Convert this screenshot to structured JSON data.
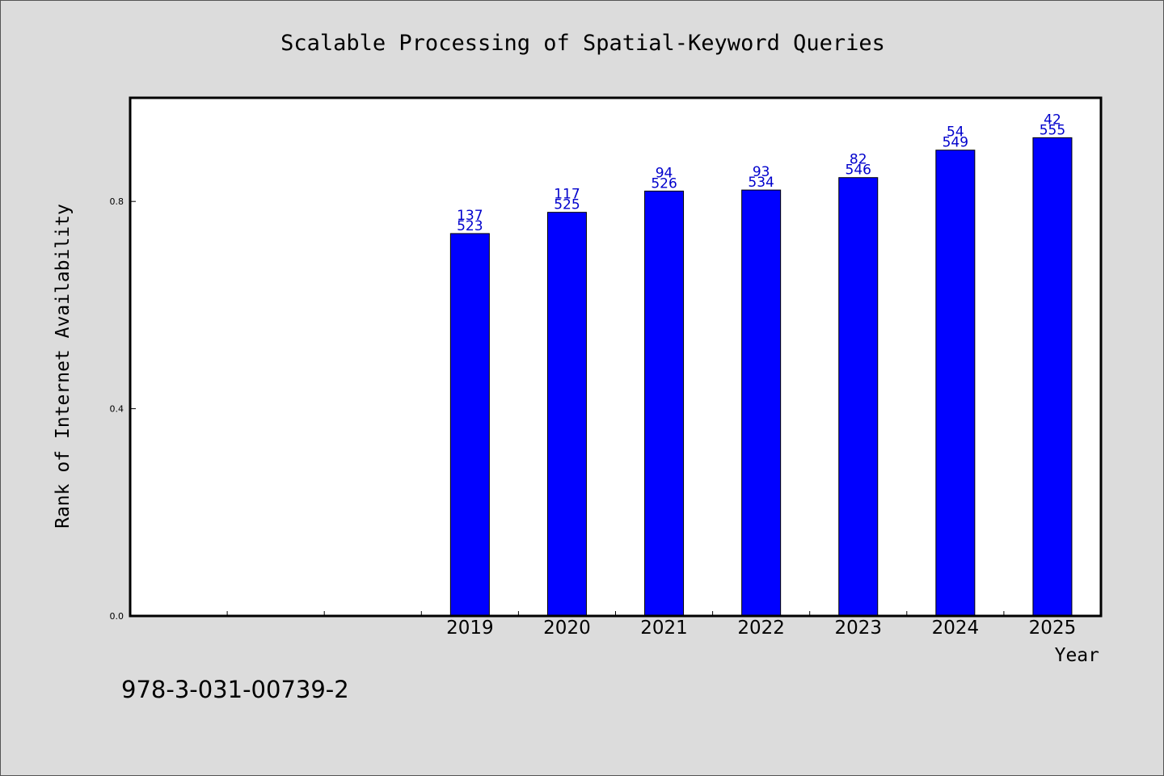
{
  "chart_data": {
    "type": "bar",
    "title": "Scalable Processing of Spatial-Keyword Queries",
    "xlabel": "Year",
    "ylabel": "Rank of Internet Availability",
    "footer": "978-3-031-00739-2",
    "ylim": [
      0,
      1.0
    ],
    "yticks": [
      {
        "value": 0.0,
        "label": "0.0"
      },
      {
        "value": 0.4,
        "label": "0.4"
      },
      {
        "value": 0.8,
        "label": "0.8"
      }
    ],
    "xslots": 10,
    "categories": [
      "2019",
      "2020",
      "2021",
      "2022",
      "2023",
      "2024",
      "2025"
    ],
    "first_category_slot": 3,
    "values": [
      0.738,
      0.779,
      0.82,
      0.822,
      0.846,
      0.899,
      0.923
    ],
    "annotations_top": [
      "137",
      "117",
      "94",
      "93",
      "82",
      "54",
      "42"
    ],
    "annotations_bottom": [
      "523",
      "525",
      "526",
      "534",
      "546",
      "549",
      "555"
    ],
    "bar_color": "#0000ff",
    "label_color": "#0000cc",
    "background": "#dcdcdc",
    "plot_background": "#ffffff",
    "grid": false,
    "legend": "none"
  }
}
